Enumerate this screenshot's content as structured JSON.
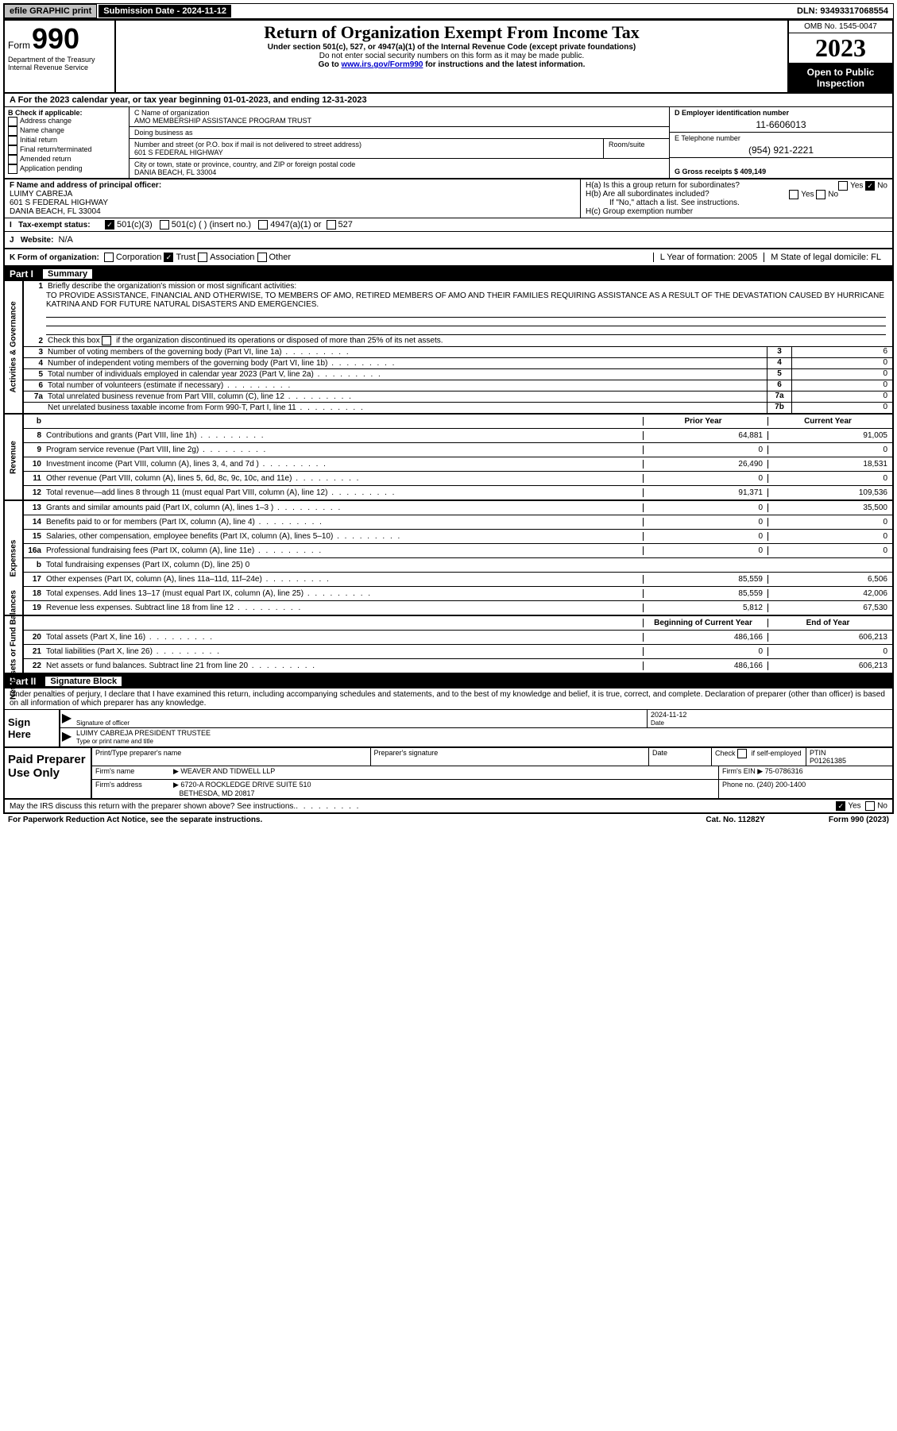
{
  "topbar": {
    "efile": "efile GRAPHIC print",
    "submission_label": "Submission Date - 2024-11-12",
    "dln_label": "DLN: 93493317068554"
  },
  "header": {
    "form_word": "Form",
    "form_num": "990",
    "title": "Return of Organization Exempt From Income Tax",
    "subtitle": "Under section 501(c), 527, or 4947(a)(1) of the Internal Revenue Code (except private foundations)",
    "ssn_note": "Do not enter social security numbers on this form as it may be made public.",
    "goto_prefix": "Go to ",
    "goto_link": "www.irs.gov/Form990",
    "goto_suffix": " for instructions and the latest information.",
    "dept": "Department of the Treasury Internal Revenue Service",
    "omb": "OMB No. 1545-0047",
    "year": "2023",
    "opi": "Open to Public Inspection"
  },
  "rowA": {
    "text_a": "A For the 2023 calendar year, or tax year beginning 01-01-2023",
    "text_b": ", and ending 12-31-2023"
  },
  "colB": {
    "label": "B Check if applicable:",
    "opts": [
      "Address change",
      "Name change",
      "Initial return",
      "Final return/terminated",
      "Amended return",
      "Application pending"
    ]
  },
  "colC": {
    "name_label": "C Name of organization",
    "name": "AMO MEMBERSHIP ASSISTANCE PROGRAM TRUST",
    "dba_label": "Doing business as",
    "dba": "",
    "street_label": "Number and street (or P.O. box if mail is not delivered to street address)",
    "street": "601 S FEDERAL HIGHWAY",
    "room_label": "Room/suite",
    "room": "",
    "city_label": "City or town, state or province, country, and ZIP or foreign postal code",
    "city": "DANIA BEACH, FL  33004"
  },
  "colD": {
    "ein_label": "D Employer identification number",
    "ein": "11-6606013",
    "phone_label": "E Telephone number",
    "phone": "(954) 921-2221",
    "gross_label": "G Gross receipts $ 409,149"
  },
  "rowF": {
    "label": "F  Name and address of principal officer:",
    "name": "LUIMY CABREJA",
    "addr1": "601 S FEDERAL HIGHWAY",
    "addr2": "DANIA BEACH, FL  33004"
  },
  "rowH": {
    "ha": "H(a)  Is this a group return for subordinates?",
    "hb": "H(b)  Are all subordinates included?",
    "hb_note": "If \"No,\" attach a list. See instructions.",
    "hc": "H(c)  Group exemption number ",
    "yes": "Yes",
    "no": "No"
  },
  "rowI": {
    "label": "Tax-exempt status:",
    "opt1": "501(c)(3)",
    "opt2": "501(c) (  ) (insert no.)",
    "opt3": "4947(a)(1) or",
    "opt4": "527"
  },
  "rowJ": {
    "label": "Website: ",
    "val": "N/A"
  },
  "rowK": {
    "label": "K Form of organization:",
    "opts": [
      "Corporation",
      "Trust",
      "Association",
      "Other"
    ],
    "l": "L Year of formation: 2005",
    "m": "M State of legal domicile: FL"
  },
  "part1": {
    "label": "Part I",
    "title": "Summary"
  },
  "gov": {
    "l1": "Briefly describe the organization's mission or most significant activities:",
    "mission": "TO PROVIDE ASSISTANCE, FINANCIAL AND OTHERWISE, TO MEMBERS OF AMO, RETIRED MEMBERS OF AMO AND THEIR FAMILIES REQUIRING ASSISTANCE AS A RESULT OF THE DEVASTATION CAUSED BY HURRICANE KATRINA AND FOR FUTURE NATURAL DISASTERS AND EMERGENCIES.",
    "l2": "Check this box      if the organization discontinued its operations or disposed of more than 25% of its net assets.",
    "lines": [
      {
        "n": "3",
        "t": "Number of voting members of the governing body (Part VI, line 1a)",
        "box": "3",
        "v": "6"
      },
      {
        "n": "4",
        "t": "Number of independent voting members of the governing body (Part VI, line 1b)",
        "box": "4",
        "v": "0"
      },
      {
        "n": "5",
        "t": "Total number of individuals employed in calendar year 2023 (Part V, line 2a)",
        "box": "5",
        "v": "0"
      },
      {
        "n": "6",
        "t": "Total number of volunteers (estimate if necessary)",
        "box": "6",
        "v": "0"
      },
      {
        "n": "7a",
        "t": "Total unrelated business revenue from Part VIII, column (C), line 12",
        "box": "7a",
        "v": "0"
      },
      {
        "n": "",
        "t": "Net unrelated business taxable income from Form 990-T, Part I, line 11",
        "box": "7b",
        "v": "0"
      }
    ]
  },
  "rev": {
    "py_head": "Prior Year",
    "cy_head": "Current Year",
    "rows": [
      {
        "n": "8",
        "t": "Contributions and grants (Part VIII, line 1h)",
        "py": "64,881",
        "cy": "91,005"
      },
      {
        "n": "9",
        "t": "Program service revenue (Part VIII, line 2g)",
        "py": "0",
        "cy": "0"
      },
      {
        "n": "10",
        "t": "Investment income (Part VIII, column (A), lines 3, 4, and 7d )",
        "py": "26,490",
        "cy": "18,531"
      },
      {
        "n": "11",
        "t": "Other revenue (Part VIII, column (A), lines 5, 6d, 8c, 9c, 10c, and 11e)",
        "py": "0",
        "cy": "0"
      },
      {
        "n": "12",
        "t": "Total revenue—add lines 8 through 11 (must equal Part VIII, column (A), line 12)",
        "py": "91,371",
        "cy": "109,536"
      }
    ]
  },
  "exp": {
    "rows": [
      {
        "n": "13",
        "t": "Grants and similar amounts paid (Part IX, column (A), lines 1–3 )",
        "py": "0",
        "cy": "35,500"
      },
      {
        "n": "14",
        "t": "Benefits paid to or for members (Part IX, column (A), line 4)",
        "py": "0",
        "cy": "0"
      },
      {
        "n": "15",
        "t": "Salaries, other compensation, employee benefits (Part IX, column (A), lines 5–10)",
        "py": "0",
        "cy": "0"
      },
      {
        "n": "16a",
        "t": "Professional fundraising fees (Part IX, column (A), line 11e)",
        "py": "0",
        "cy": "0"
      },
      {
        "n": "b",
        "t": "Total fundraising expenses (Part IX, column (D), line 25) 0",
        "py": "",
        "cy": "",
        "shade": true
      },
      {
        "n": "17",
        "t": "Other expenses (Part IX, column (A), lines 11a–11d, 11f–24e)",
        "py": "85,559",
        "cy": "6,506"
      },
      {
        "n": "18",
        "t": "Total expenses. Add lines 13–17 (must equal Part IX, column (A), line 25)",
        "py": "85,559",
        "cy": "42,006"
      },
      {
        "n": "19",
        "t": "Revenue less expenses. Subtract line 18 from line 12",
        "py": "5,812",
        "cy": "67,530"
      }
    ]
  },
  "net": {
    "boy_head": "Beginning of Current Year",
    "eoy_head": "End of Year",
    "rows": [
      {
        "n": "20",
        "t": "Total assets (Part X, line 16)",
        "py": "486,166",
        "cy": "606,213"
      },
      {
        "n": "21",
        "t": "Total liabilities (Part X, line 26)",
        "py": "0",
        "cy": "0"
      },
      {
        "n": "22",
        "t": "Net assets or fund balances. Subtract line 21 from line 20",
        "py": "486,166",
        "cy": "606,213"
      }
    ]
  },
  "part2": {
    "label": "Part II",
    "title": "Signature Block"
  },
  "perjury": "Under penalties of perjury, I declare that I have examined this return, including accompanying schedules and statements, and to the best of my knowledge and belief, it is true, correct, and complete. Declaration of preparer (other than officer) is based on all information of which preparer has any knowledge.",
  "sign": {
    "left": "Sign Here",
    "sig_label": "Signature of officer",
    "name": "LUIMY CABREJA PRESIDENT TRUSTEE",
    "name_label": "Type or print name and title",
    "date_label": "Date",
    "date": "2024-11-12"
  },
  "paid": {
    "left": "Paid Preparer Use Only",
    "h1": "Print/Type preparer's name",
    "h2": "Preparer's signature",
    "h3": "Date",
    "h4a": "Check",
    "h4b": "if self-employed",
    "h5": "PTIN",
    "ptin": "P01261385",
    "firm_name_label": "Firm's name",
    "firm_name": "WEAVER AND TIDWELL LLP",
    "firm_ein_label": "Firm's EIN ",
    "firm_ein": "75-0786316",
    "firm_addr_label": "Firm's address",
    "firm_addr1": "6720-A ROCKLEDGE DRIVE SUITE 510",
    "firm_addr2": "BETHESDA, MD  20817",
    "phone_label": "Phone no. (240) 200-1400"
  },
  "discuss": {
    "text": "May the IRS discuss this return with the preparer shown above? See instructions.",
    "yes": "Yes",
    "no": "No"
  },
  "footer": {
    "left": "For Paperwork Reduction Act Notice, see the separate instructions.",
    "center": "Cat. No. 11282Y",
    "right": "Form 990 (2023)"
  },
  "side_labels": {
    "gov": "Activities & Governance",
    "rev": "Revenue",
    "exp": "Expenses",
    "net": "Net Assets or Fund Balances"
  }
}
